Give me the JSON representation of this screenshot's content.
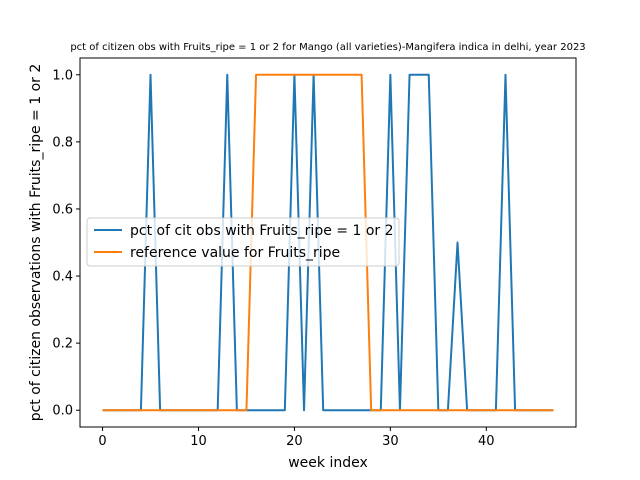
{
  "chart_data": {
    "type": "line",
    "title": "pct of citizen obs with Fruits_ripe = 1 or 2 for Mango (all varieties)-Mangifera indica in delhi, year 2023",
    "xlabel": "week index",
    "ylabel": "pct of citizen observations with Fruits_ripe = 1 or 2",
    "xlim": [
      -2.35,
      49.35
    ],
    "ylim": [
      -0.05,
      1.05
    ],
    "xticks": [
      0,
      10,
      20,
      30,
      40
    ],
    "yticks": [
      0.0,
      0.2,
      0.4,
      0.6,
      0.8,
      1.0
    ],
    "ytick_labels": [
      "0.0",
      "0.2",
      "0.4",
      "0.6",
      "0.8",
      "1.0"
    ],
    "grid": false,
    "legend_position": "center-left",
    "x": [
      0,
      1,
      2,
      3,
      4,
      5,
      6,
      7,
      8,
      9,
      10,
      11,
      12,
      13,
      14,
      15,
      16,
      17,
      18,
      19,
      20,
      21,
      22,
      23,
      24,
      25,
      26,
      27,
      28,
      29,
      30,
      31,
      32,
      33,
      34,
      35,
      36,
      37,
      38,
      39,
      40,
      41,
      42,
      43,
      44,
      45,
      46,
      47
    ],
    "series": [
      {
        "name": "pct of cit obs with Fruits_ripe = 1 or 2",
        "color": "#1f77b4",
        "values": [
          0,
          0,
          0,
          0,
          0,
          1,
          0,
          0,
          0,
          0,
          0,
          0,
          0,
          1,
          0,
          0,
          0,
          0,
          0,
          0,
          1,
          0,
          1,
          0,
          0,
          0,
          0,
          0,
          0,
          0,
          1,
          0,
          1,
          1,
          1,
          0,
          0,
          0.5,
          0,
          0,
          0,
          0,
          1,
          0,
          0,
          0,
          0,
          0
        ]
      },
      {
        "name": "reference value for Fruits_ripe",
        "color": "#ff7f0e",
        "values": [
          0,
          0,
          0,
          0,
          0,
          0,
          0,
          0,
          0,
          0,
          0,
          0,
          0,
          0,
          0,
          0,
          1,
          1,
          1,
          1,
          1,
          1,
          1,
          1,
          1,
          1,
          1,
          1,
          0,
          0,
          0,
          0,
          0,
          0,
          0,
          0,
          0,
          0,
          0,
          0,
          0,
          0,
          0,
          0,
          0,
          0,
          0,
          0
        ]
      }
    ]
  }
}
